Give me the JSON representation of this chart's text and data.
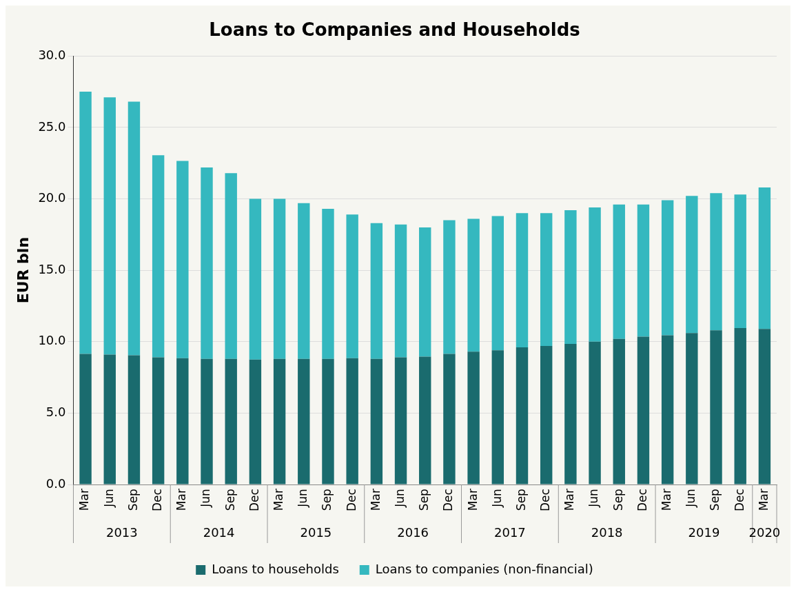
{
  "chart_data": {
    "type": "bar",
    "title": "Loans to Companies and Households",
    "ylabel": "EUR bln",
    "categories": [
      "Mar",
      "Jun",
      "Sep",
      "Dec",
      "Mar",
      "Jun",
      "Sep",
      "Dec",
      "Mar",
      "Jun",
      "Sep",
      "Dec",
      "Mar",
      "Jun",
      "Sep",
      "Dec",
      "Mar",
      "Jun",
      "Sep",
      "Dec",
      "Mar",
      "Jun",
      "Sep",
      "Dec",
      "Mar",
      "Jun",
      "Sep",
      "Dec",
      "Mar"
    ],
    "annotations": [
      "2013",
      "2014",
      "2015",
      "2016",
      "2017",
      "2018",
      "2019",
      "2020"
    ],
    "stacked": true,
    "series": [
      {
        "name": "Loans to households",
        "color": "#1a6b6e",
        "values": [
          9.15,
          9.1,
          9.05,
          8.9,
          8.85,
          8.8,
          8.8,
          8.75,
          8.8,
          8.8,
          8.8,
          8.85,
          8.8,
          8.9,
          8.95,
          9.15,
          9.3,
          9.4,
          9.6,
          9.7,
          9.85,
          10.0,
          10.2,
          10.35,
          10.45,
          10.6,
          10.8,
          10.95,
          10.9
        ]
      },
      {
        "name": "Loans to companies (non-financial)",
        "color": "#35b8bf",
        "values": [
          18.35,
          18.0,
          17.75,
          14.15,
          13.8,
          13.4,
          13.0,
          11.25,
          11.2,
          10.9,
          10.5,
          10.05,
          9.5,
          9.3,
          9.05,
          9.35,
          9.3,
          9.4,
          9.4,
          9.3,
          9.35,
          9.4,
          9.4,
          9.25,
          9.45,
          9.6,
          9.6,
          9.35,
          9.9
        ]
      }
    ],
    "ylim": [
      0,
      30
    ],
    "yticks": [
      {
        "value": 0,
        "label": "0.0"
      },
      {
        "value": 5,
        "label": "5.0"
      },
      {
        "value": 10,
        "label": "10.0"
      },
      {
        "value": 15,
        "label": "15.0"
      },
      {
        "value": 20,
        "label": "20.0"
      },
      {
        "value": 25,
        "label": "25.0"
      },
      {
        "value": 30,
        "label": "30.0"
      }
    ],
    "grid": "y",
    "legend": "bottom"
  }
}
